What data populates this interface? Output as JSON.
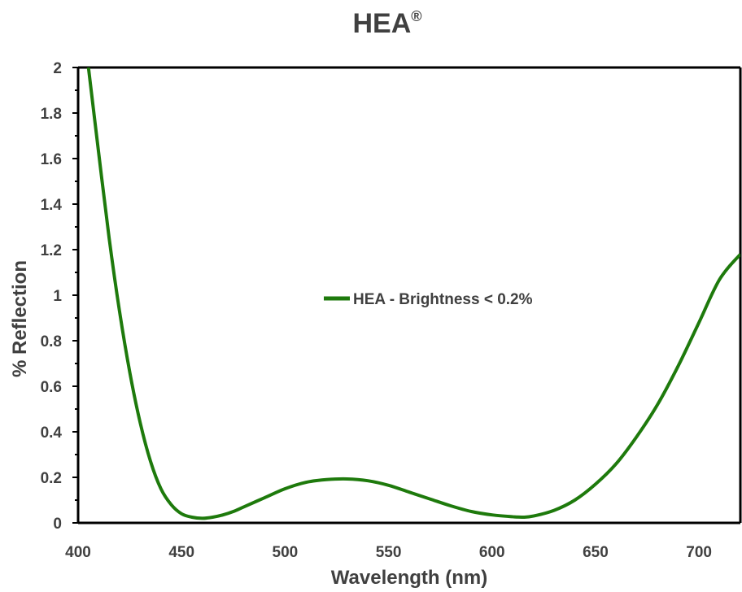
{
  "chart_data": {
    "type": "line",
    "title": "HEA",
    "title_mark": "®",
    "xlabel": "Wavelength (nm)",
    "ylabel": "% Reflection",
    "xlim": [
      400,
      720
    ],
    "ylim": [
      0,
      2
    ],
    "xticks": [
      400,
      450,
      500,
      550,
      600,
      650,
      700
    ],
    "xtick_labels": [
      "400",
      "450",
      "500",
      "550",
      "600",
      "650",
      "700"
    ],
    "yticks": [
      0,
      0.2,
      0.4,
      0.6,
      0.8,
      1,
      1.2,
      1.4,
      1.6,
      1.8,
      2
    ],
    "ytick_labels": [
      "0",
      "0.2",
      "0.4",
      "0.6",
      "0.8",
      "1",
      "1.2",
      "1.4",
      "1.6",
      "1.8",
      "2"
    ],
    "grid": false,
    "legend_position": "center",
    "series": [
      {
        "name": "HEA - Brightness < 0.2%",
        "color": "#1e7a0c",
        "x": [
          405,
          410,
          415,
          420,
          425,
          430,
          435,
          440,
          445,
          450,
          455,
          460,
          465,
          470,
          475,
          480,
          490,
          500,
          510,
          520,
          530,
          540,
          550,
          560,
          570,
          580,
          590,
          600,
          610,
          615,
          620,
          630,
          640,
          650,
          660,
          670,
          680,
          690,
          700,
          710,
          720
        ],
        "y": [
          2.0,
          1.62,
          1.25,
          0.93,
          0.66,
          0.44,
          0.27,
          0.15,
          0.08,
          0.04,
          0.025,
          0.02,
          0.025,
          0.035,
          0.05,
          0.07,
          0.11,
          0.15,
          0.178,
          0.19,
          0.193,
          0.185,
          0.165,
          0.135,
          0.105,
          0.075,
          0.05,
          0.035,
          0.027,
          0.025,
          0.03,
          0.055,
          0.1,
          0.17,
          0.26,
          0.38,
          0.52,
          0.69,
          0.88,
          1.07,
          1.18
        ]
      }
    ]
  }
}
